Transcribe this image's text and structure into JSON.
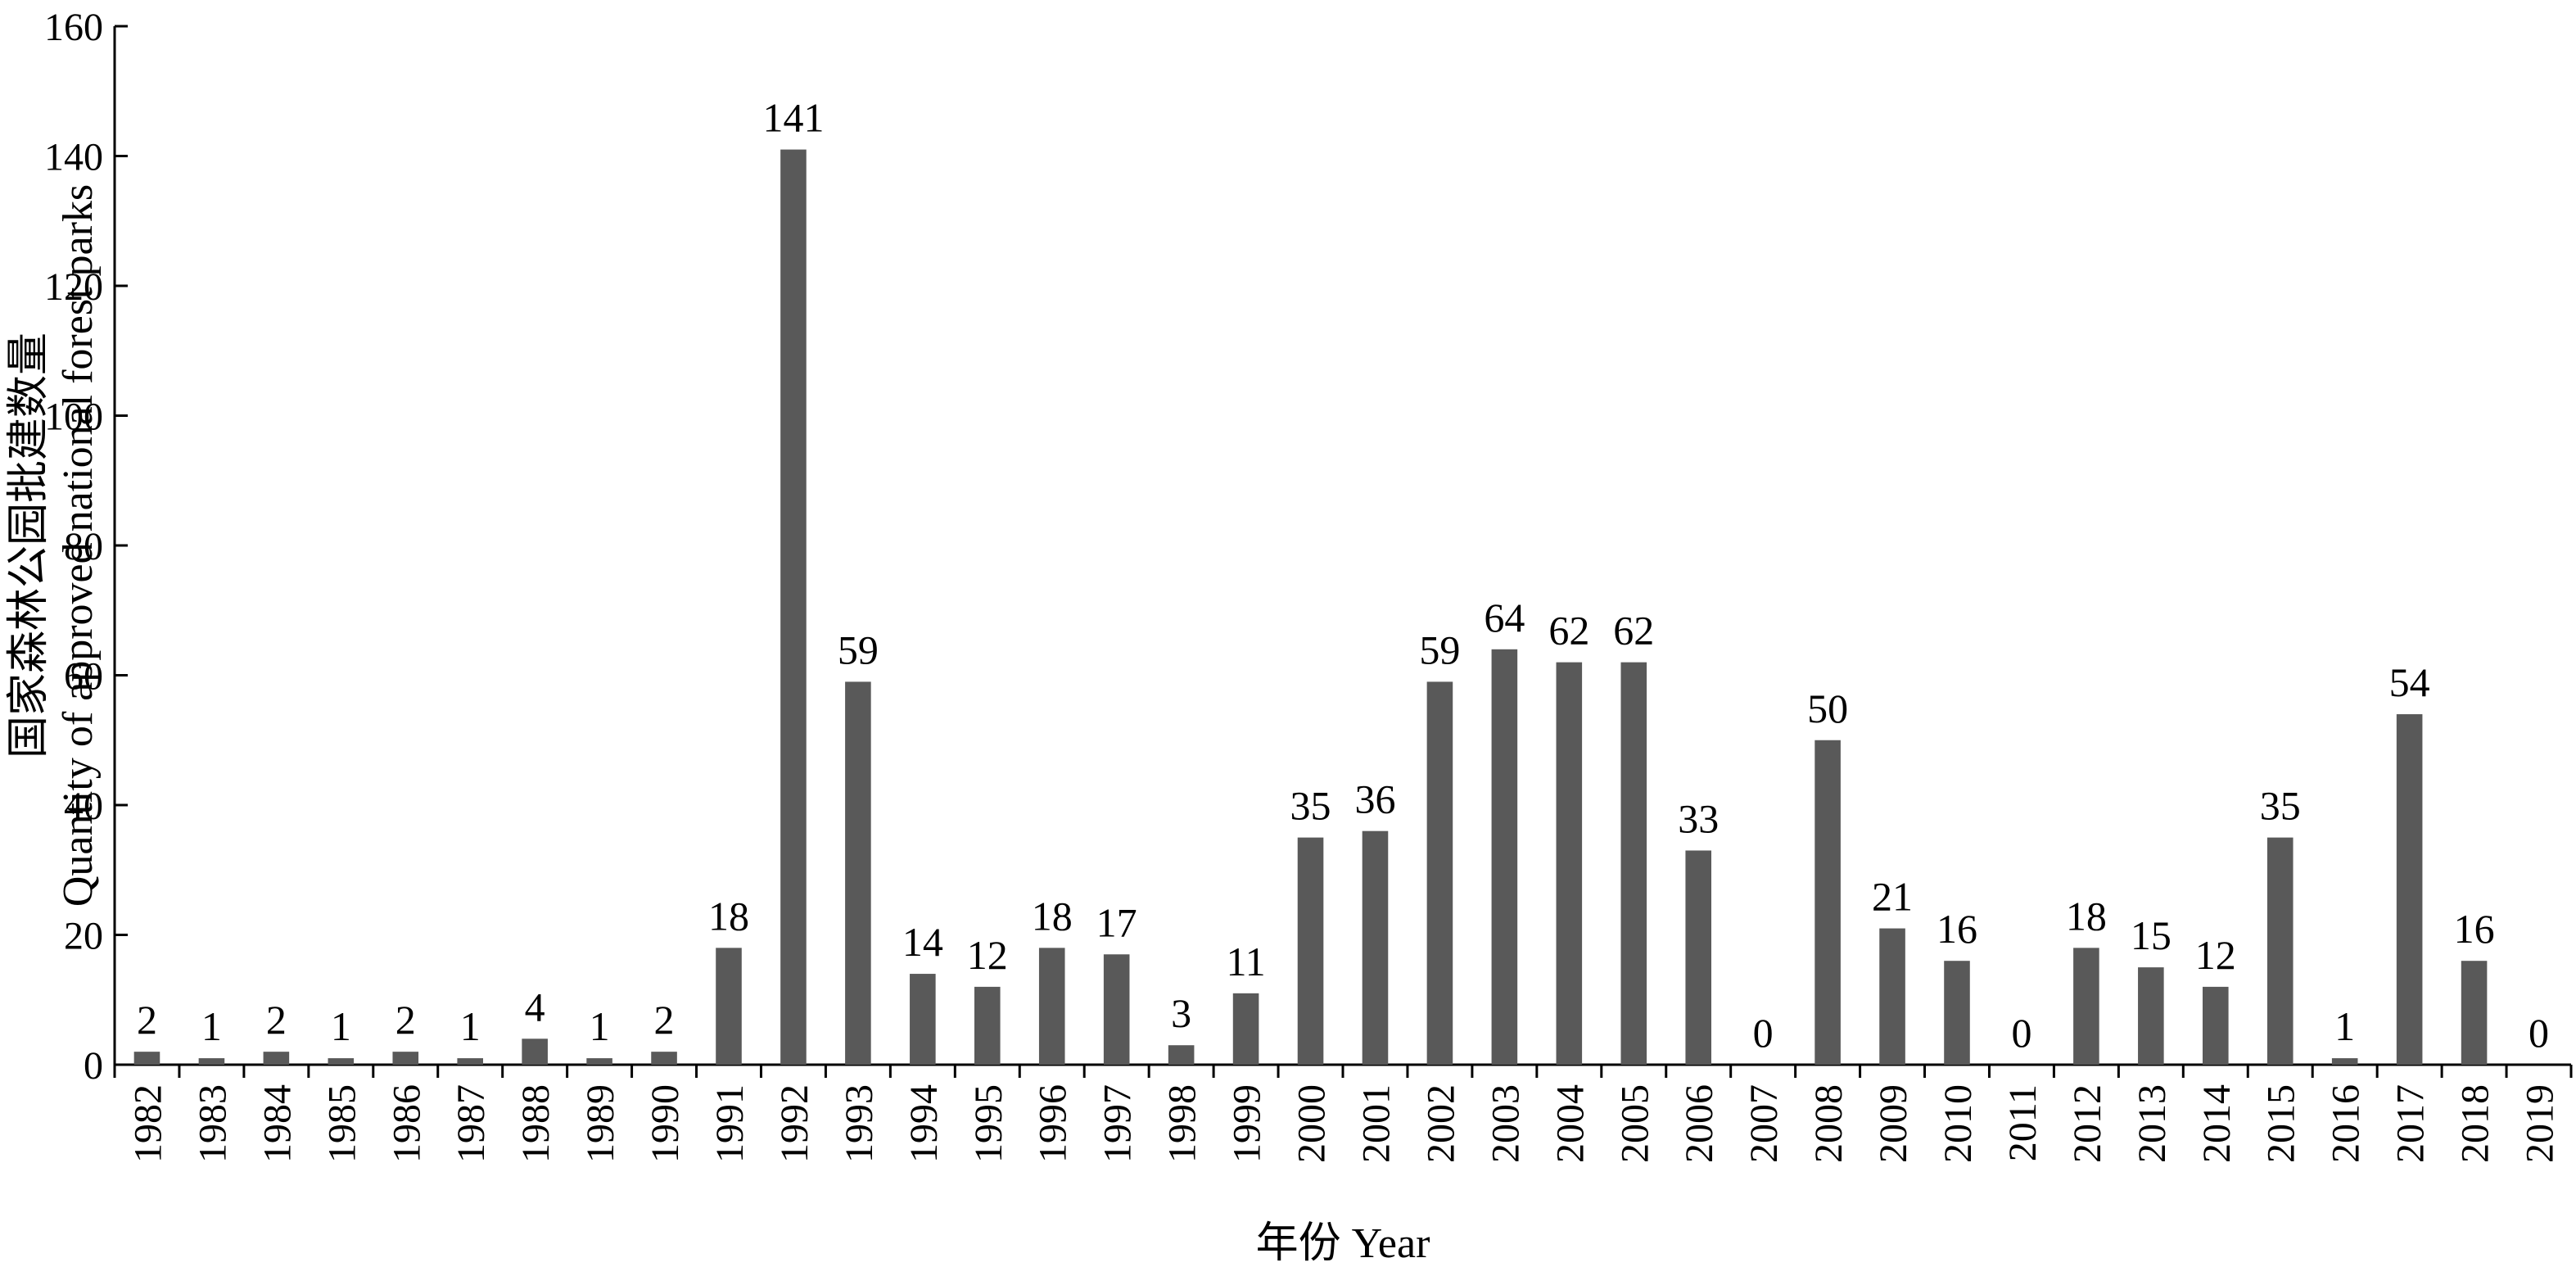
{
  "chart_data": {
    "type": "bar",
    "categories": [
      "1982",
      "1983",
      "1984",
      "1985",
      "1986",
      "1987",
      "1988",
      "1989",
      "1990",
      "1991",
      "1992",
      "1993",
      "1994",
      "1995",
      "1996",
      "1997",
      "1998",
      "1999",
      "2000",
      "2001",
      "2002",
      "2003",
      "2004",
      "2005",
      "2006",
      "2007",
      "2008",
      "2009",
      "2010",
      "2011",
      "2012",
      "2013",
      "2014",
      "2015",
      "2016",
      "2017",
      "2018",
      "2019"
    ],
    "values": [
      2,
      1,
      2,
      1,
      2,
      1,
      4,
      1,
      2,
      18,
      141,
      59,
      14,
      12,
      18,
      17,
      3,
      11,
      35,
      36,
      59,
      64,
      62,
      62,
      33,
      0,
      50,
      21,
      16,
      0,
      18,
      15,
      12,
      35,
      1,
      54,
      16,
      0
    ],
    "xlabel": "年份 Year",
    "ylabel_cn": "国家森林公园批建数量",
    "ylabel_en": "Quantity of approved national forest parks",
    "ylim": [
      0,
      160
    ],
    "yticks": [
      0,
      20,
      40,
      60,
      80,
      100,
      120,
      140,
      160
    ],
    "grid": false,
    "data_labels": true,
    "bar_color": "#595959"
  }
}
